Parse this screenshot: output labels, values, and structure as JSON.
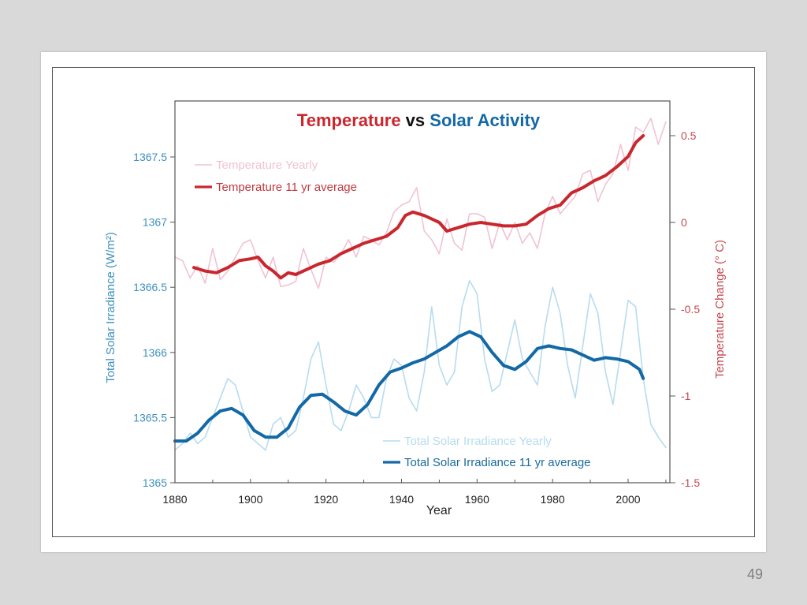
{
  "slide": {
    "page_number": "49"
  },
  "colors": {
    "temp_avg": "#c9272e",
    "temp_yearly": "#f1c3d2",
    "tsi_avg": "#1368a6",
    "tsi_yearly": "#b6dcef",
    "left_axis_text": "#3c8fbf",
    "right_axis_text": "#c9474d",
    "title_black": "#111111"
  },
  "chart_data": {
    "type": "line",
    "title": "Temperature vs Solar Activity",
    "title_parts": [
      {
        "text": "Temperature",
        "color_key": "temp_avg"
      },
      {
        "text": " vs ",
        "color_key": "title_black"
      },
      {
        "text": "Solar Activity",
        "color_key": "tsi_avg"
      }
    ],
    "xlabel": "Year",
    "ylabel_left": "Total Solar Irradiance (W/m²)",
    "ylabel_right": "Temperature Change (° C)",
    "xlim": [
      1880,
      2010
    ],
    "ylim_left": [
      1365,
      1367.75
    ],
    "ylim_right": [
      -1.5,
      0.75
    ],
    "x_ticks": [
      1880,
      1900,
      1920,
      1940,
      1960,
      1980,
      2000
    ],
    "x_tick_labels": [
      "1880",
      "1900",
      "1920",
      "1940",
      "1960",
      "1980",
      "2000"
    ],
    "x_minor_ticks": [
      1890,
      1910,
      1930,
      1950,
      1970,
      1990,
      2010
    ],
    "y_left_ticks": [
      1365,
      1365.5,
      1366,
      1366.5,
      1367,
      1367.5
    ],
    "y_left_tick_labels": [
      "1365",
      "1365.5",
      "1366",
      "1366.5",
      "1367",
      "1367.5"
    ],
    "y_right_ticks": [
      -1.5,
      -1,
      -0.5,
      0,
      0.5
    ],
    "y_right_tick_labels": [
      "-1.5",
      "-1",
      "-0.5",
      "0",
      "0.5"
    ],
    "grid": false,
    "legend": [
      {
        "label": "Temperature Yearly",
        "series": "temp_yearly",
        "placement": "top-left"
      },
      {
        "label": "Temperature 11 yr average",
        "series": "temp_avg",
        "placement": "top-left"
      },
      {
        "label": "Total Solar Irradiance Yearly",
        "series": "tsi_yearly",
        "placement": "bottom-right"
      },
      {
        "label": "Total Solar Irradiance 11 yr average",
        "series": "tsi_avg",
        "placement": "bottom-right"
      }
    ],
    "series": [
      {
        "name": "Temperature Yearly",
        "key": "temp_yearly",
        "axis": "right",
        "x": [
          1880,
          1882,
          1884,
          1886,
          1888,
          1890,
          1892,
          1894,
          1896,
          1898,
          1900,
          1902,
          1904,
          1906,
          1908,
          1910,
          1912,
          1914,
          1916,
          1918,
          1920,
          1922,
          1924,
          1926,
          1928,
          1930,
          1932,
          1934,
          1936,
          1938,
          1940,
          1942,
          1944,
          1946,
          1948,
          1950,
          1952,
          1954,
          1956,
          1958,
          1960,
          1962,
          1964,
          1966,
          1968,
          1970,
          1972,
          1974,
          1976,
          1978,
          1980,
          1982,
          1984,
          1986,
          1988,
          1990,
          1992,
          1994,
          1996,
          1998,
          2000,
          2002,
          2004,
          2006,
          2008,
          2010
        ],
        "values": [
          -0.2,
          -0.22,
          -0.32,
          -0.25,
          -0.35,
          -0.15,
          -0.33,
          -0.28,
          -0.2,
          -0.12,
          -0.1,
          -0.22,
          -0.32,
          -0.2,
          -0.37,
          -0.36,
          -0.34,
          -0.15,
          -0.27,
          -0.38,
          -0.2,
          -0.23,
          -0.18,
          -0.1,
          -0.2,
          -0.08,
          -0.1,
          -0.13,
          -0.06,
          0.06,
          0.1,
          0.12,
          0.2,
          -0.05,
          -0.1,
          -0.18,
          0.02,
          -0.12,
          -0.16,
          0.05,
          0.05,
          0.03,
          -0.15,
          0.0,
          -0.1,
          0.0,
          -0.12,
          -0.06,
          -0.15,
          0.05,
          0.15,
          0.05,
          0.1,
          0.15,
          0.28,
          0.3,
          0.12,
          0.22,
          0.28,
          0.45,
          0.3,
          0.55,
          0.52,
          0.6,
          0.45,
          0.58
        ]
      },
      {
        "name": "Temperature 11 yr average",
        "key": "temp_avg",
        "axis": "right",
        "x": [
          1885,
          1888,
          1891,
          1894,
          1897,
          1900,
          1902,
          1904,
          1906,
          1908,
          1910,
          1912,
          1915,
          1918,
          1921,
          1924,
          1927,
          1930,
          1933,
          1936,
          1939,
          1941,
          1943,
          1946,
          1948,
          1950,
          1952,
          1955,
          1958,
          1961,
          1964,
          1967,
          1970,
          1973,
          1976,
          1979,
          1982,
          1985,
          1988,
          1991,
          1994,
          1997,
          2000,
          2002,
          2004
        ],
        "values": [
          -0.26,
          -0.28,
          -0.29,
          -0.26,
          -0.22,
          -0.21,
          -0.2,
          -0.25,
          -0.28,
          -0.32,
          -0.29,
          -0.3,
          -0.27,
          -0.24,
          -0.22,
          -0.18,
          -0.15,
          -0.12,
          -0.1,
          -0.08,
          -0.03,
          0.04,
          0.06,
          0.04,
          0.02,
          0.0,
          -0.05,
          -0.03,
          -0.01,
          0.0,
          -0.01,
          -0.02,
          -0.02,
          -0.01,
          0.04,
          0.08,
          0.1,
          0.17,
          0.2,
          0.24,
          0.27,
          0.32,
          0.38,
          0.46,
          0.5
        ]
      },
      {
        "name": "Total Solar Irradiance Yearly",
        "key": "tsi_yearly",
        "axis": "left",
        "x": [
          1880,
          1882,
          1884,
          1886,
          1888,
          1890,
          1892,
          1894,
          1896,
          1898,
          1900,
          1902,
          1904,
          1906,
          1908,
          1910,
          1912,
          1914,
          1916,
          1918,
          1920,
          1922,
          1924,
          1926,
          1928,
          1930,
          1932,
          1934,
          1936,
          1938,
          1940,
          1942,
          1944,
          1946,
          1948,
          1950,
          1952,
          1954,
          1956,
          1958,
          1960,
          1962,
          1964,
          1966,
          1968,
          1970,
          1972,
          1974,
          1976,
          1978,
          1980,
          1982,
          1984,
          1986,
          1988,
          1990,
          1992,
          1994,
          1996,
          1998,
          2000,
          2002,
          2004,
          2006,
          2008,
          2010
        ],
        "values": [
          1365.25,
          1365.3,
          1365.38,
          1365.3,
          1365.35,
          1365.5,
          1365.65,
          1365.8,
          1365.75,
          1365.55,
          1365.35,
          1365.3,
          1365.25,
          1365.45,
          1365.5,
          1365.35,
          1365.4,
          1365.65,
          1365.95,
          1366.08,
          1365.75,
          1365.45,
          1365.4,
          1365.55,
          1365.75,
          1365.65,
          1365.5,
          1365.5,
          1365.8,
          1365.95,
          1365.9,
          1365.65,
          1365.55,
          1365.85,
          1366.35,
          1365.9,
          1365.75,
          1365.85,
          1366.35,
          1366.55,
          1366.45,
          1365.95,
          1365.7,
          1365.75,
          1366.0,
          1366.25,
          1365.95,
          1365.85,
          1365.75,
          1366.2,
          1366.5,
          1366.3,
          1365.9,
          1365.65,
          1366.05,
          1366.45,
          1366.3,
          1365.85,
          1365.6,
          1366.0,
          1366.4,
          1366.35,
          1365.8,
          1365.45,
          1365.35,
          1365.27
        ]
      },
      {
        "name": "Total Solar Irradiance 11 yr average",
        "key": "tsi_avg",
        "axis": "left",
        "x": [
          1880,
          1883,
          1886,
          1889,
          1892,
          1895,
          1898,
          1901,
          1904,
          1907,
          1910,
          1913,
          1916,
          1919,
          1922,
          1925,
          1928,
          1931,
          1934,
          1937,
          1940,
          1943,
          1946,
          1949,
          1952,
          1955,
          1958,
          1961,
          1964,
          1967,
          1970,
          1973,
          1976,
          1979,
          1982,
          1985,
          1988,
          1991,
          1994,
          1997,
          2000,
          2003,
          2004
        ],
        "values": [
          1365.32,
          1365.32,
          1365.38,
          1365.48,
          1365.55,
          1365.57,
          1365.52,
          1365.4,
          1365.35,
          1365.35,
          1365.42,
          1365.58,
          1365.67,
          1365.68,
          1365.62,
          1365.55,
          1365.52,
          1365.6,
          1365.75,
          1365.85,
          1365.88,
          1365.92,
          1365.95,
          1366.0,
          1366.05,
          1366.12,
          1366.16,
          1366.12,
          1366.0,
          1365.9,
          1365.87,
          1365.93,
          1366.03,
          1366.05,
          1366.03,
          1366.02,
          1365.98,
          1365.94,
          1365.96,
          1365.95,
          1365.93,
          1365.87,
          1365.8
        ]
      }
    ]
  }
}
